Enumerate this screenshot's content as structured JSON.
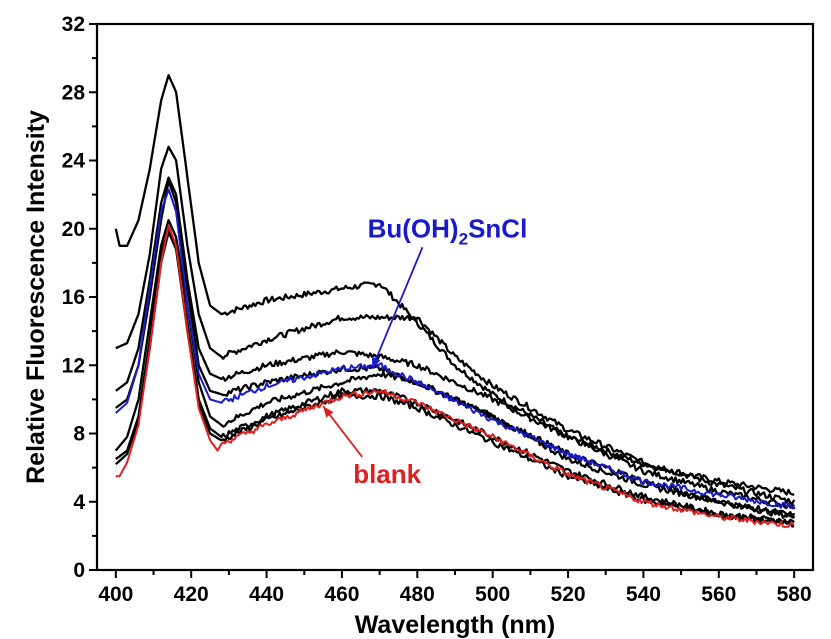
{
  "chart_data": {
    "type": "line",
    "xlabel": "Wavelength (nm)",
    "ylabel": "Relative Fluorescence Intensity",
    "xlim": [
      395,
      585
    ],
    "ylim": [
      0,
      32
    ],
    "xticks": [
      400,
      420,
      440,
      460,
      480,
      500,
      520,
      540,
      560,
      580
    ],
    "yticks": [
      0,
      4,
      8,
      12,
      16,
      20,
      24,
      28,
      32
    ],
    "grid": false,
    "legend": "none",
    "annotations": [
      {
        "text": "Bu(OH)",
        "sub": "2",
        "tail": "SnCl",
        "color": "#1a1acd",
        "points_to": [
          468,
          11.8
        ],
        "text_at": [
          488,
          19.5
        ]
      },
      {
        "text": "blank",
        "sub": "",
        "tail": "",
        "color": "#e02020",
        "points_to": [
          455,
          9.6
        ],
        "text_at": [
          472,
          5.1
        ]
      }
    ],
    "series": [
      {
        "color": "#000000",
        "x": [
          400,
          401,
          403,
          406,
          409,
          412,
          414,
          416,
          419,
          422,
          425,
          428,
          440,
          460,
          470,
          480,
          490,
          500,
          520,
          540,
          560,
          580
        ],
        "y": [
          20.0,
          19.0,
          19.0,
          20.5,
          23.5,
          27.5,
          29.0,
          28.0,
          23.0,
          18.0,
          15.5,
          15.0,
          15.8,
          16.5,
          16.8,
          14.5,
          12.0,
          10.3,
          7.8,
          6.2,
          5.2,
          4.5
        ]
      },
      {
        "color": "#000000",
        "x": [
          400,
          403,
          406,
          409,
          412,
          414,
          416,
          419,
          422,
          425,
          428,
          440,
          460,
          480,
          490,
          500,
          520,
          540,
          560,
          580
        ],
        "y": [
          13.0,
          13.3,
          15.0,
          18.5,
          23.5,
          24.8,
          24.0,
          19.0,
          15.0,
          13.0,
          12.5,
          13.5,
          14.8,
          14.8,
          12.5,
          10.8,
          8.2,
          6.3,
          5.0,
          4.0
        ]
      },
      {
        "color": "#000000",
        "x": [
          400,
          403,
          406,
          409,
          412,
          414,
          416,
          419,
          422,
          425,
          428,
          440,
          460,
          470,
          480,
          500,
          520,
          540,
          560,
          580
        ],
        "y": [
          10.5,
          11.0,
          13.0,
          17.0,
          21.5,
          23.0,
          22.0,
          17.0,
          13.0,
          11.5,
          11.2,
          12.0,
          12.8,
          12.5,
          12.0,
          10.0,
          7.8,
          5.8,
          4.6,
          3.7
        ]
      },
      {
        "color": "#000000",
        "x": [
          400,
          403,
          406,
          409,
          412,
          414,
          416,
          419,
          422,
          425,
          428,
          440,
          460,
          470,
          480,
          500,
          520,
          540,
          560,
          580
        ],
        "y": [
          9.5,
          10.0,
          12.0,
          16.0,
          20.5,
          22.8,
          21.5,
          16.5,
          12.0,
          10.5,
          10.3,
          11.0,
          11.8,
          11.8,
          11.0,
          9.0,
          6.5,
          5.0,
          4.0,
          3.1
        ]
      },
      {
        "color": "#000000",
        "x": [
          400,
          403,
          406,
          409,
          412,
          414,
          416,
          419,
          422,
          425,
          428,
          440,
          460,
          470,
          480,
          500,
          520,
          540,
          560,
          580
        ],
        "y": [
          7.0,
          7.8,
          10.0,
          14.5,
          19.0,
          20.5,
          19.5,
          15.5,
          11.0,
          9.0,
          8.5,
          9.8,
          11.0,
          11.5,
          11.0,
          9.0,
          6.8,
          5.2,
          4.0,
          3.2
        ]
      },
      {
        "color": "#000000",
        "x": [
          400,
          403,
          406,
          409,
          412,
          414,
          416,
          419,
          422,
          425,
          428,
          440,
          460,
          470,
          480,
          500,
          520,
          540,
          560,
          580
        ],
        "y": [
          6.5,
          7.0,
          9.0,
          13.5,
          18.5,
          20.0,
          19.0,
          14.5,
          10.0,
          8.3,
          7.8,
          9.0,
          10.5,
          10.5,
          9.8,
          7.8,
          5.8,
          4.3,
          3.3,
          2.8
        ]
      },
      {
        "color": "#000000",
        "x": [
          400,
          403,
          406,
          409,
          412,
          414,
          416,
          419,
          422,
          425,
          428,
          440,
          460,
          470,
          480,
          500,
          520,
          540,
          560,
          580
        ],
        "y": [
          6.2,
          6.8,
          8.8,
          13.0,
          18.0,
          19.8,
          18.8,
          14.0,
          9.8,
          8.0,
          7.6,
          8.8,
          10.2,
          10.2,
          9.5,
          7.5,
          5.5,
          4.1,
          3.2,
          2.7
        ]
      },
      {
        "color": "#1a1acd",
        "x": [
          400,
          403,
          406,
          409,
          412,
          414,
          416,
          419,
          422,
          425,
          428,
          440,
          460,
          470,
          480,
          500,
          520,
          540,
          560,
          580
        ],
        "y": [
          9.2,
          9.8,
          12.0,
          16.5,
          21.0,
          22.3,
          21.0,
          15.5,
          11.5,
          10.0,
          9.8,
          10.8,
          11.8,
          12.0,
          11.0,
          8.8,
          6.8,
          5.2,
          4.4,
          3.7
        ]
      },
      {
        "color": "#e02020",
        "x": [
          400,
          401,
          403,
          406,
          409,
          412,
          414,
          416,
          419,
          422,
          425,
          427,
          428,
          440,
          460,
          470,
          480,
          500,
          520,
          540,
          560,
          580
        ],
        "y": [
          5.5,
          5.5,
          6.3,
          8.5,
          13.0,
          18.0,
          20.2,
          19.0,
          14.0,
          9.5,
          7.6,
          7.0,
          7.4,
          8.5,
          10.2,
          10.5,
          9.8,
          7.8,
          5.6,
          4.0,
          3.1,
          2.6
        ]
      }
    ]
  }
}
